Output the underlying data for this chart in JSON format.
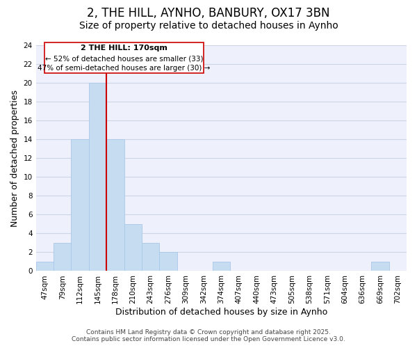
{
  "title": "2, THE HILL, AYNHO, BANBURY, OX17 3BN",
  "subtitle": "Size of property relative to detached houses in Aynho",
  "xlabel": "Distribution of detached houses by size in Aynho",
  "ylabel": "Number of detached properties",
  "bin_labels": [
    "47sqm",
    "79sqm",
    "112sqm",
    "145sqm",
    "178sqm",
    "210sqm",
    "243sqm",
    "276sqm",
    "309sqm",
    "342sqm",
    "374sqm",
    "407sqm",
    "440sqm",
    "473sqm",
    "505sqm",
    "538sqm",
    "571sqm",
    "604sqm",
    "636sqm",
    "669sqm",
    "702sqm"
  ],
  "bar_values": [
    1,
    3,
    14,
    20,
    14,
    5,
    3,
    2,
    0,
    0,
    1,
    0,
    0,
    0,
    0,
    0,
    0,
    0,
    0,
    1,
    0
  ],
  "bar_color": "#c6dcf0",
  "bar_edge_color": "#a8c8e8",
  "vline_x_idx": 4,
  "vline_color": "#cc0000",
  "ylim": [
    0,
    24
  ],
  "yticks": [
    0,
    2,
    4,
    6,
    8,
    10,
    12,
    14,
    16,
    18,
    20,
    22,
    24
  ],
  "annotation_title": "2 THE HILL: 170sqm",
  "annotation_line1": "← 52% of detached houses are smaller (33)",
  "annotation_line2": "47% of semi-detached houses are larger (30) →",
  "footer_line1": "Contains HM Land Registry data © Crown copyright and database right 2025.",
  "footer_line2": "Contains public sector information licensed under the Open Government Licence v3.0.",
  "background_color": "#eef0fb",
  "grid_color": "#ccd4e8",
  "title_fontsize": 12,
  "subtitle_fontsize": 10,
  "axis_label_fontsize": 9,
  "tick_fontsize": 7.5,
  "footer_fontsize": 6.5
}
